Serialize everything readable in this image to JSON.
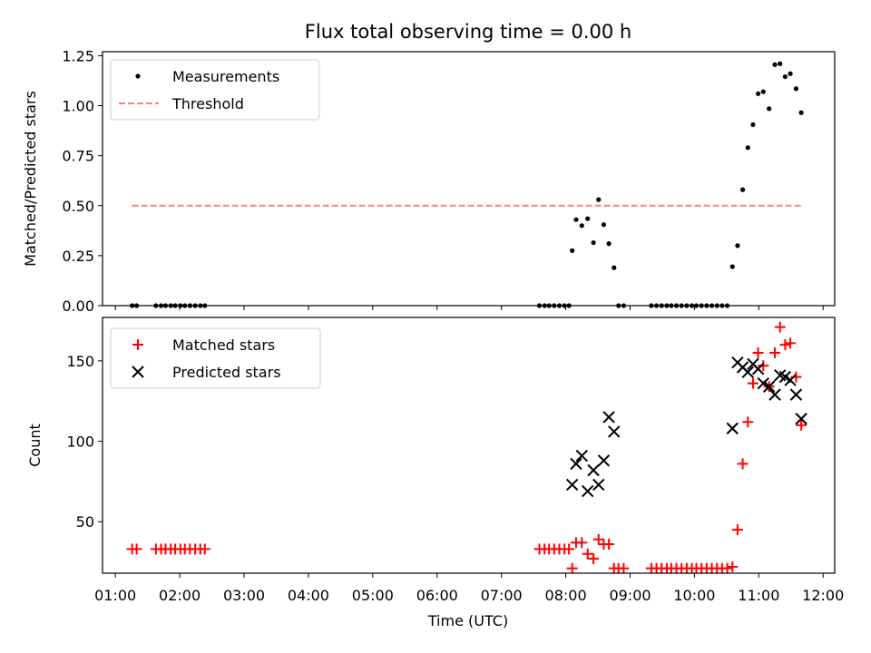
{
  "chart_data": [
    {
      "type": "scatter",
      "title": "Flux total observing time = 0.00 h",
      "xlabel": "",
      "ylabel": "Matched/Predicted stars",
      "ylim": [
        0,
        1.27
      ],
      "y_ticks": [
        "0.00",
        "0.25",
        "0.50",
        "0.75",
        "1.00",
        "1.25"
      ],
      "legend_position": "top-left",
      "series": [
        {
          "name": "Measurements",
          "marker": "dot",
          "color": "#000000",
          "x": [
            1.26,
            1.33,
            1.63,
            1.71,
            1.78,
            1.86,
            1.93,
            2.01,
            2.08,
            2.16,
            2.24,
            2.32,
            2.39,
            7.59,
            7.67,
            7.74,
            7.82,
            7.9,
            7.98,
            8.05,
            8.1,
            8.16,
            8.25,
            8.34,
            8.43,
            8.51,
            8.59,
            8.67,
            8.75,
            8.82,
            8.9,
            9.33,
            9.41,
            9.49,
            9.57,
            9.64,
            9.72,
            9.8,
            9.88,
            9.96,
            10.03,
            10.11,
            10.19,
            10.27,
            10.35,
            10.43,
            10.51,
            10.59,
            10.67,
            10.75,
            10.83,
            10.91,
            10.99,
            11.07,
            11.16,
            11.25,
            11.33,
            11.41,
            11.49,
            11.58,
            11.66
          ],
          "y": [
            0,
            0,
            0,
            0,
            0,
            0,
            0,
            0,
            0,
            0,
            0,
            0,
            0,
            0,
            0,
            0,
            0,
            0,
            0,
            0,
            0.275,
            0.43,
            0.4,
            0.435,
            0.315,
            0.53,
            0.405,
            0.31,
            0.19,
            0,
            0,
            0,
            0,
            0,
            0,
            0,
            0,
            0,
            0,
            0,
            0,
            0,
            0,
            0,
            0,
            0,
            0,
            0.195,
            0.3,
            0.58,
            0.79,
            0.905,
            1.06,
            1.07,
            0.985,
            1.205,
            1.21,
            1.145,
            1.16,
            1.085,
            0.965
          ]
        },
        {
          "name": "Threshold",
          "marker": "dashed-line",
          "color": "#ff7f7f",
          "x": [
            1.26,
            11.66
          ],
          "y": [
            0.5,
            0.5
          ]
        }
      ]
    },
    {
      "type": "scatter",
      "title": "",
      "xlabel": "Time (UTC)",
      "ylabel": "Count",
      "ylim": [
        18,
        177
      ],
      "y_ticks": [
        "50",
        "100",
        "150"
      ],
      "x_ticks": [
        "01:00",
        "02:00",
        "03:00",
        "04:00",
        "05:00",
        "06:00",
        "07:00",
        "08:00",
        "09:00",
        "10:00",
        "11:00",
        "12:00"
      ],
      "legend_position": "top-left",
      "series": [
        {
          "name": "Matched stars",
          "marker": "plus",
          "color": "#ff0000",
          "x": [
            1.26,
            1.33,
            1.63,
            1.71,
            1.78,
            1.86,
            1.93,
            2.01,
            2.08,
            2.16,
            2.24,
            2.32,
            2.39,
            7.59,
            7.67,
            7.74,
            7.82,
            7.9,
            7.98,
            8.05,
            8.1,
            8.16,
            8.25,
            8.34,
            8.43,
            8.51,
            8.59,
            8.67,
            8.75,
            8.82,
            8.9,
            9.33,
            9.41,
            9.49,
            9.57,
            9.64,
            9.72,
            9.8,
            9.88,
            9.96,
            10.03,
            10.11,
            10.19,
            10.27,
            10.35,
            10.43,
            10.51,
            10.59,
            10.67,
            10.75,
            10.83,
            10.91,
            10.99,
            11.07,
            11.16,
            11.25,
            11.33,
            11.41,
            11.49,
            11.58,
            11.66
          ],
          "y": [
            33,
            33,
            33,
            33,
            33,
            33,
            33,
            33,
            33,
            33,
            33,
            33,
            33,
            33,
            33,
            33,
            33,
            33,
            33,
            33,
            21,
            37,
            37,
            30,
            27,
            39,
            36,
            36,
            21,
            21,
            21,
            21,
            21,
            21,
            21,
            21,
            21,
            21,
            21,
            21,
            21,
            21,
            21,
            21,
            21,
            21,
            21,
            22,
            45,
            86,
            112,
            136,
            155,
            147,
            134,
            155,
            171,
            160,
            161,
            140,
            110
          ]
        },
        {
          "name": "Predicted stars",
          "marker": "x",
          "color": "#000000",
          "x": [
            8.1,
            8.16,
            8.25,
            8.34,
            8.43,
            8.51,
            8.59,
            8.67,
            8.75,
            10.59,
            10.67,
            10.75,
            10.83,
            10.91,
            10.99,
            11.07,
            11.16,
            11.25,
            11.33,
            11.41,
            11.49,
            11.58,
            11.66
          ],
          "y": [
            73,
            86,
            91,
            69,
            82,
            73,
            88,
            115,
            106,
            108,
            149,
            146,
            143,
            148,
            145,
            136,
            134,
            129,
            141,
            140,
            138,
            129,
            114
          ]
        }
      ]
    }
  ]
}
